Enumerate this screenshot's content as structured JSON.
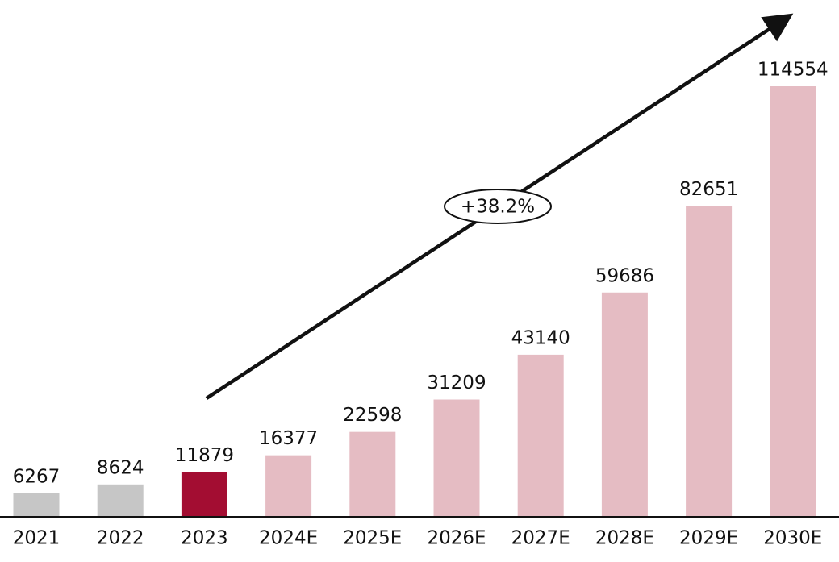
{
  "chart_data": {
    "type": "bar",
    "categories": [
      "2021",
      "2022",
      "2023",
      "2024E",
      "2025E",
      "2026E",
      "2027E",
      "2028E",
      "2029E",
      "2030E"
    ],
    "values": [
      6267,
      8624,
      11879,
      16377,
      22598,
      31209,
      43140,
      59686,
      82651,
      114554
    ],
    "colors": [
      "#c6c6c6",
      "#c6c6c6",
      "#a30d32",
      "#e5bcc3",
      "#e5bcc3",
      "#e5bcc3",
      "#e5bcc3",
      "#e5bcc3",
      "#e5bcc3",
      "#e5bcc3"
    ],
    "annotation": "+38.2%"
  }
}
